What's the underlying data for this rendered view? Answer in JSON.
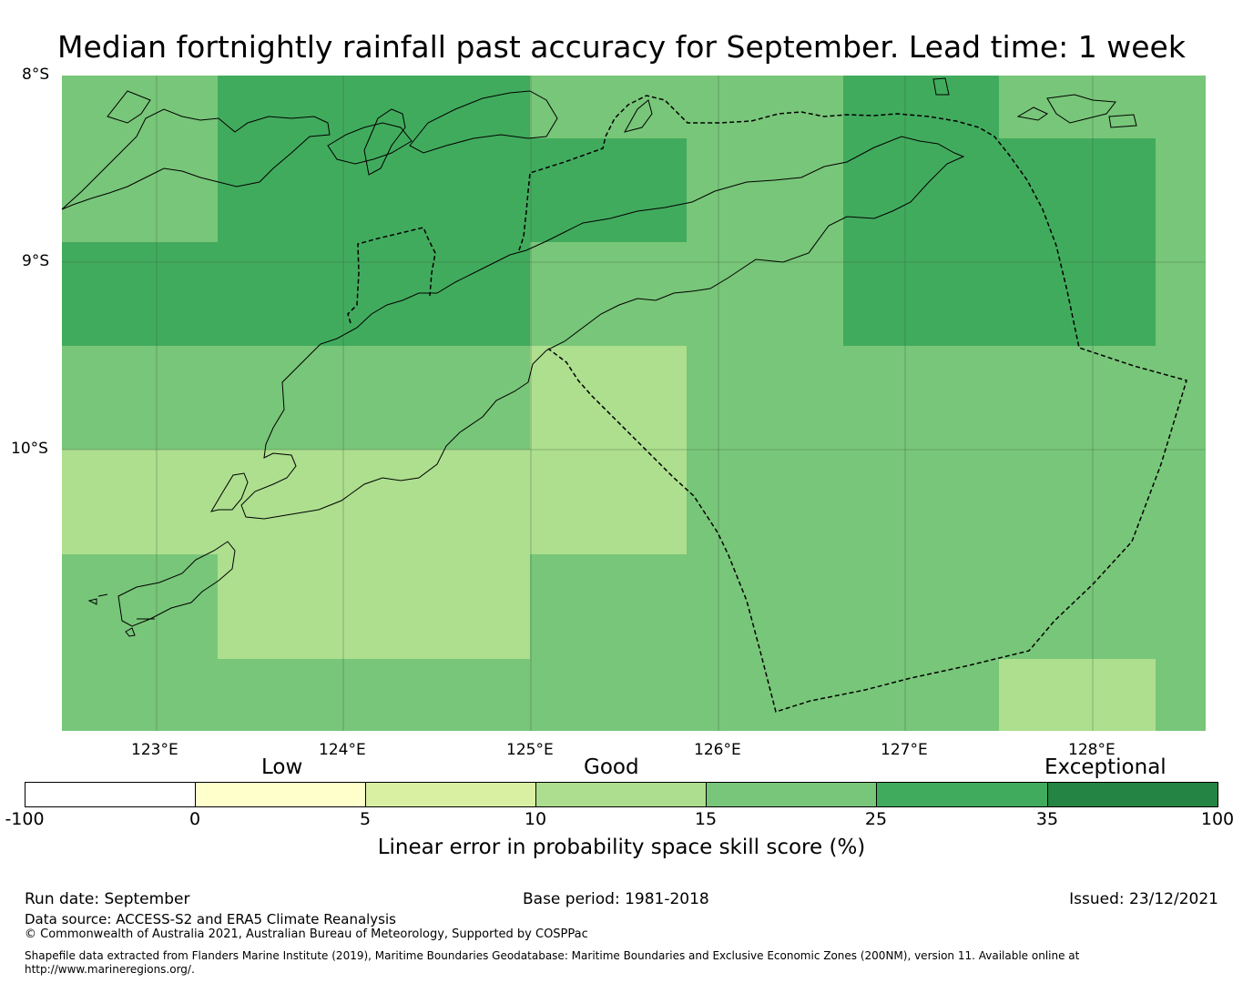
{
  "title": "Median fortnightly rainfall past accuracy for September. Lead time: 1 week",
  "map": {
    "lat_labels": [
      "8°S",
      "9°S",
      "10°S"
    ],
    "lon_labels": [
      "123°E",
      "124°E",
      "125°E",
      "126°E",
      "127°E",
      "128°E"
    ],
    "lat_range": [
      -11.5,
      -8.0
    ],
    "lon_range": [
      122.5,
      128.6
    ],
    "grid_cell_deg": 0.83,
    "category_colors": {
      "10-15": "#addf8e",
      "15-25": "#78c679",
      "25-35": "#41ab5d"
    },
    "legend": {
      "categories": [
        "Low",
        "Good",
        "Exceptional"
      ],
      "ticks": [
        "-100",
        "0",
        "5",
        "10",
        "15",
        "25",
        "35",
        "100"
      ],
      "colors": [
        "#ffffff",
        "#ffffcc",
        "#d9f0a3",
        "#addd8e",
        "#78c679",
        "#41ab5d",
        "#238443"
      ],
      "label": "Linear error in probability space skill score (%)"
    }
  },
  "footer": {
    "run_date": "Run date: September",
    "base_period": "Base period: 1981-2018",
    "issued": "Issued: 23/12/2021",
    "data_source": "Data source: ACCESS-S2 and ERA5 Climate Reanalysis",
    "copyright": "© Commonwealth of Australia 2021, Australian Bureau of Meteorology, Supported by COSPPac",
    "shapefile_line1": "Shapefile data extracted from Flanders Marine Institute (2019), Maritime Boundaries Geodatabase: Maritime Boundaries and Exclusive Economic Zones (200NM), version 11. Available online at",
    "shapefile_line2": "http://www.marineregions.org/."
  }
}
